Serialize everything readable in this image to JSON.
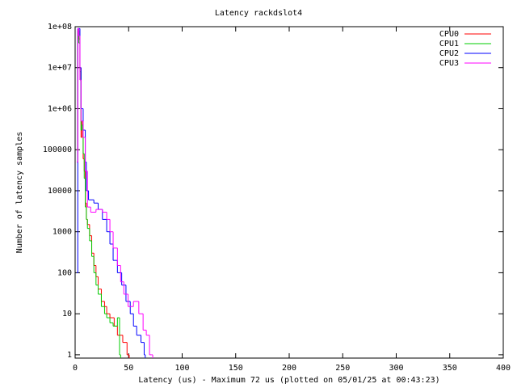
{
  "chart_data": {
    "type": "line",
    "title": "Latency rackdslot4",
    "x_label": "Latency (us) - Maximum 72 us (plotted on 05/01/25 at 00:43:23)",
    "y_label": "Number of latency samples",
    "log_y": true,
    "step": true,
    "legend": "top-right",
    "xlim": [
      0,
      400
    ],
    "xticks": [
      0,
      50,
      100,
      150,
      200,
      250,
      300,
      350,
      400
    ],
    "ylim": [
      0.83,
      100000000
    ],
    "yticks": [
      1,
      10,
      100,
      1000,
      10000,
      100000,
      {
        "value": 1000000,
        "label": "1e+06"
      },
      {
        "value": 10000000,
        "label": "1e+07"
      },
      {
        "value": 100000000,
        "label": "1e+08"
      }
    ],
    "series": [
      {
        "name": "CPU0",
        "color": "#ff0000",
        "x": [
          2,
          3,
          4,
          5,
          6,
          7,
          8,
          9,
          10,
          11,
          12,
          14,
          16,
          18,
          20,
          22,
          25,
          28,
          30,
          33,
          37,
          40,
          45,
          49,
          50
        ],
        "values": [
          100000,
          80000000,
          50000000,
          10000000,
          200000,
          500000,
          60000,
          30000,
          5000,
          2000,
          1500,
          800,
          300,
          150,
          80,
          40,
          20,
          15,
          10,
          8,
          5,
          3,
          2,
          1,
          1
        ]
      },
      {
        "name": "CPU1",
        "color": "#00cc00",
        "x": [
          2,
          3,
          4,
          5,
          6,
          7,
          8,
          9,
          10,
          11,
          12,
          14,
          16,
          18,
          20,
          22,
          25,
          28,
          30,
          33,
          36,
          40,
          42
        ],
        "values": [
          50000,
          85000000,
          40000000,
          8000000,
          300000,
          400000,
          80000,
          20000,
          4000,
          2000,
          1200,
          600,
          250,
          100,
          50,
          30,
          15,
          10,
          8,
          6,
          5,
          8,
          1
        ]
      },
      {
        "name": "CPU2",
        "color": "#0000ff",
        "x": [
          2,
          3,
          5,
          6,
          8,
          10,
          11,
          13,
          18,
          22,
          26,
          30,
          33,
          36,
          40,
          44,
          48,
          52,
          55,
          58,
          62,
          65
        ],
        "values": [
          100,
          90000000,
          10000000,
          1000000,
          300000,
          50000,
          10000,
          6000,
          5000,
          3500,
          2000,
          1000,
          500,
          200,
          100,
          50,
          20,
          10,
          5,
          3,
          2,
          1
        ]
      },
      {
        "name": "CPU3",
        "color": "#ff00ff",
        "x": [
          2,
          3,
          4,
          5,
          6,
          8,
          10,
          12,
          15,
          20,
          26,
          30,
          33,
          36,
          40,
          43,
          46,
          50,
          55,
          60,
          64,
          67,
          70,
          72
        ],
        "values": [
          50000,
          90000000,
          60000000,
          5000000,
          500000,
          200000,
          30000,
          4000,
          3000,
          3500,
          3000,
          2000,
          1000,
          400,
          150,
          60,
          30,
          15,
          20,
          10,
          4,
          3,
          1,
          1
        ]
      }
    ]
  }
}
